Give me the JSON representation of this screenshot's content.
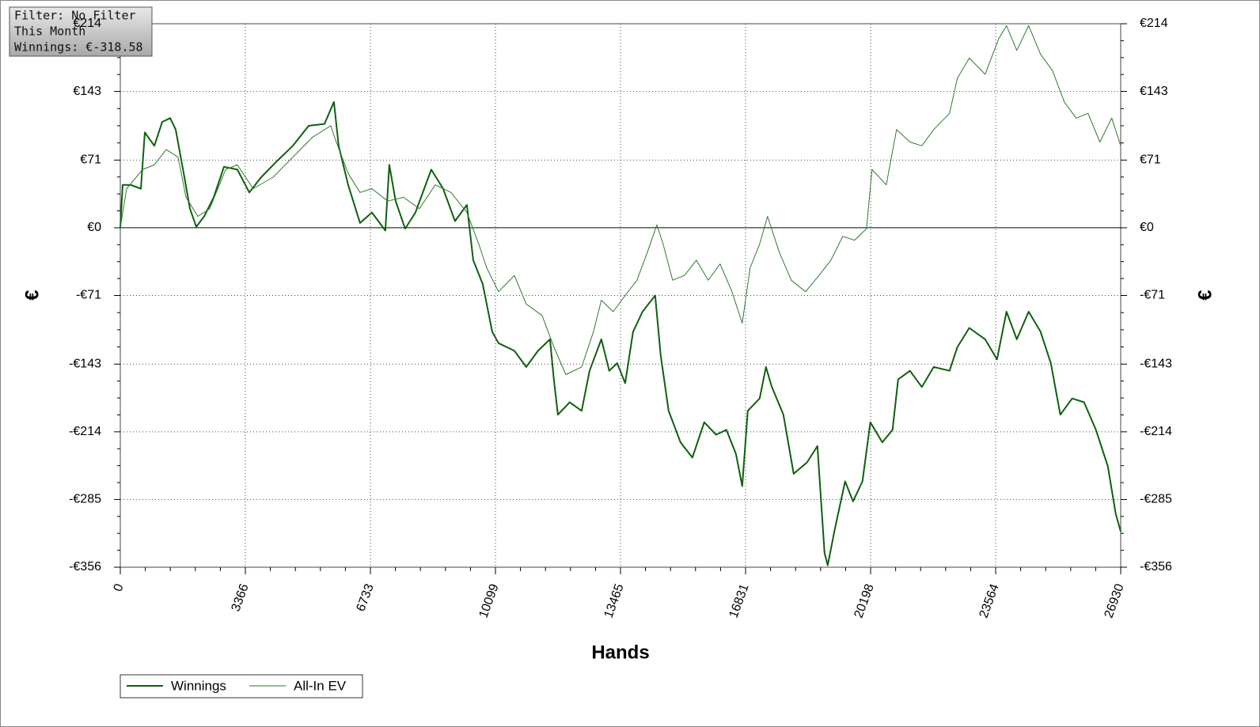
{
  "chart_data": {
    "type": "line",
    "filter_box": [
      "Filter: No Filter",
      "This Month",
      "Winnings: €-318.58"
    ],
    "xlabel": "Hands",
    "ylabel": "€",
    "y2label": "€",
    "xlim": [
      0,
      26930
    ],
    "xticks": [
      0,
      3366,
      6733,
      10099,
      13465,
      16831,
      20198,
      23564,
      26930
    ],
    "ylim": [
      -356,
      214
    ],
    "yticks": [
      {
        "value": 214,
        "label": "€214"
      },
      {
        "value": 143,
        "label": "€143"
      },
      {
        "value": 71,
        "label": "€71"
      },
      {
        "value": 0,
        "label": "€0"
      },
      {
        "value": -71,
        "label": "-€71"
      },
      {
        "value": -143,
        "label": "-€143"
      },
      {
        "value": -214,
        "label": "-€214"
      },
      {
        "value": -285,
        "label": "-€285"
      },
      {
        "value": -356,
        "label": "-€356"
      }
    ],
    "y2lim": [
      -356,
      214
    ],
    "y2ticks": [
      {
        "value": 214,
        "label": "€214"
      },
      {
        "value": 143,
        "label": "€143"
      },
      {
        "value": 71,
        "label": "€71"
      },
      {
        "value": 0,
        "label": "€0"
      },
      {
        "value": -71,
        "label": "-€71"
      },
      {
        "value": -143,
        "label": "-€143"
      },
      {
        "value": -214,
        "label": "-€214"
      },
      {
        "value": -285,
        "label": "-€285"
      },
      {
        "value": -356,
        "label": "-€356"
      }
    ],
    "grid": true,
    "legend": "bottom-left",
    "series": [
      {
        "name": "Winnings",
        "color": "#0f5f0f",
        "x": [
          0,
          64,
          277,
          554,
          660,
          916,
          1129,
          1342,
          1491,
          1725,
          1874,
          2045,
          2258,
          2513,
          2790,
          3152,
          3472,
          3792,
          4218,
          4644,
          5070,
          5496,
          5751,
          5879,
          6134,
          6454,
          6773,
          7135,
          7242,
          7412,
          7668,
          7945,
          8371,
          8690,
          9010,
          9330,
          9500,
          9755,
          10011,
          10181,
          10607,
          10927,
          11246,
          11566,
          11672,
          11779,
          12098,
          12418,
          12631,
          12950,
          13163,
          13376,
          13590,
          13803,
          14058,
          14399,
          14548,
          14761,
          15081,
          15400,
          15720,
          16039,
          16316,
          16572,
          16742,
          16891,
          17211,
          17381,
          17530,
          17849,
          18126,
          18488,
          18765,
          18957,
          19042,
          19234,
          19511,
          19724,
          19979,
          20192,
          20512,
          20788,
          20938,
          21257,
          21576,
          21896,
          22322,
          22535,
          22854,
          23280,
          23600,
          23855,
          24132,
          24452,
          24771,
          25048,
          25304,
          25624,
          25943,
          26263,
          26582,
          26795,
          26930
        ],
        "values": [
          0,
          45,
          45,
          41,
          100,
          86,
          111,
          115,
          103,
          53,
          20,
          1,
          12,
          32,
          64,
          61,
          37,
          53,
          70,
          86,
          107,
          109,
          132,
          86,
          45,
          5,
          16,
          -3,
          66,
          28,
          -1,
          16,
          61,
          41,
          7,
          24,
          -34,
          -59,
          -109,
          -121,
          -129,
          -146,
          -129,
          -117,
          -159,
          -196,
          -183,
          -192,
          -150,
          -117,
          -150,
          -142,
          -163,
          -109,
          -88,
          -71,
          -134,
          -192,
          -225,
          -241,
          -204,
          -217,
          -212,
          -237,
          -271,
          -192,
          -179,
          -146,
          -166,
          -196,
          -258,
          -246,
          -229,
          -341,
          -354,
          -316,
          -266,
          -287,
          -266,
          -204,
          -225,
          -212,
          -159,
          -150,
          -167,
          -146,
          -150,
          -125,
          -105,
          -117,
          -138,
          -88,
          -117,
          -88,
          -109,
          -142,
          -196,
          -179,
          -183,
          -212,
          -250,
          -300,
          -318.58
        ]
      },
      {
        "name": "All-In EV",
        "color": "#2f7a2f",
        "x": [
          0,
          170,
          596,
          916,
          1235,
          1555,
          1768,
          2087,
          2407,
          2833,
          3152,
          3578,
          4111,
          4644,
          5176,
          5666,
          5815,
          6134,
          6454,
          6773,
          7199,
          7626,
          8052,
          8477,
          8903,
          9330,
          9649,
          9862,
          10181,
          10607,
          10927,
          11353,
          11672,
          11992,
          12418,
          12737,
          12950,
          13270,
          13590,
          13909,
          14186,
          14442,
          14612,
          14868,
          15187,
          15507,
          15826,
          16146,
          16465,
          16742,
          16955,
          17211,
          17424,
          17743,
          18062,
          18446,
          18808,
          19127,
          19447,
          19766,
          20086,
          20235,
          20619,
          20896,
          21257,
          21576,
          21896,
          22322,
          22535,
          22854,
          23280,
          23642,
          23855,
          24132,
          24452,
          24771,
          25091,
          25411,
          25730,
          26050,
          26369,
          26689,
          26930
        ],
        "values": [
          0,
          41,
          61,
          66,
          82,
          74,
          32,
          12,
          20,
          61,
          66,
          41,
          53,
          74,
          95,
          107,
          90,
          57,
          37,
          41,
          28,
          32,
          20,
          45,
          37,
          16,
          -17,
          -42,
          -67,
          -50,
          -80,
          -92,
          -125,
          -154,
          -146,
          -109,
          -76,
          -88,
          -71,
          -55,
          -26,
          3,
          -17,
          -55,
          -50,
          -34,
          -55,
          -38,
          -67,
          -100,
          -42,
          -17,
          12,
          -26,
          -55,
          -67,
          -50,
          -34,
          -9,
          -13,
          -1,
          61,
          45,
          103,
          90,
          86,
          103,
          120,
          157,
          178,
          161,
          198,
          212,
          186,
          212,
          182,
          165,
          132,
          115,
          120,
          90,
          115,
          86
        ]
      }
    ]
  }
}
